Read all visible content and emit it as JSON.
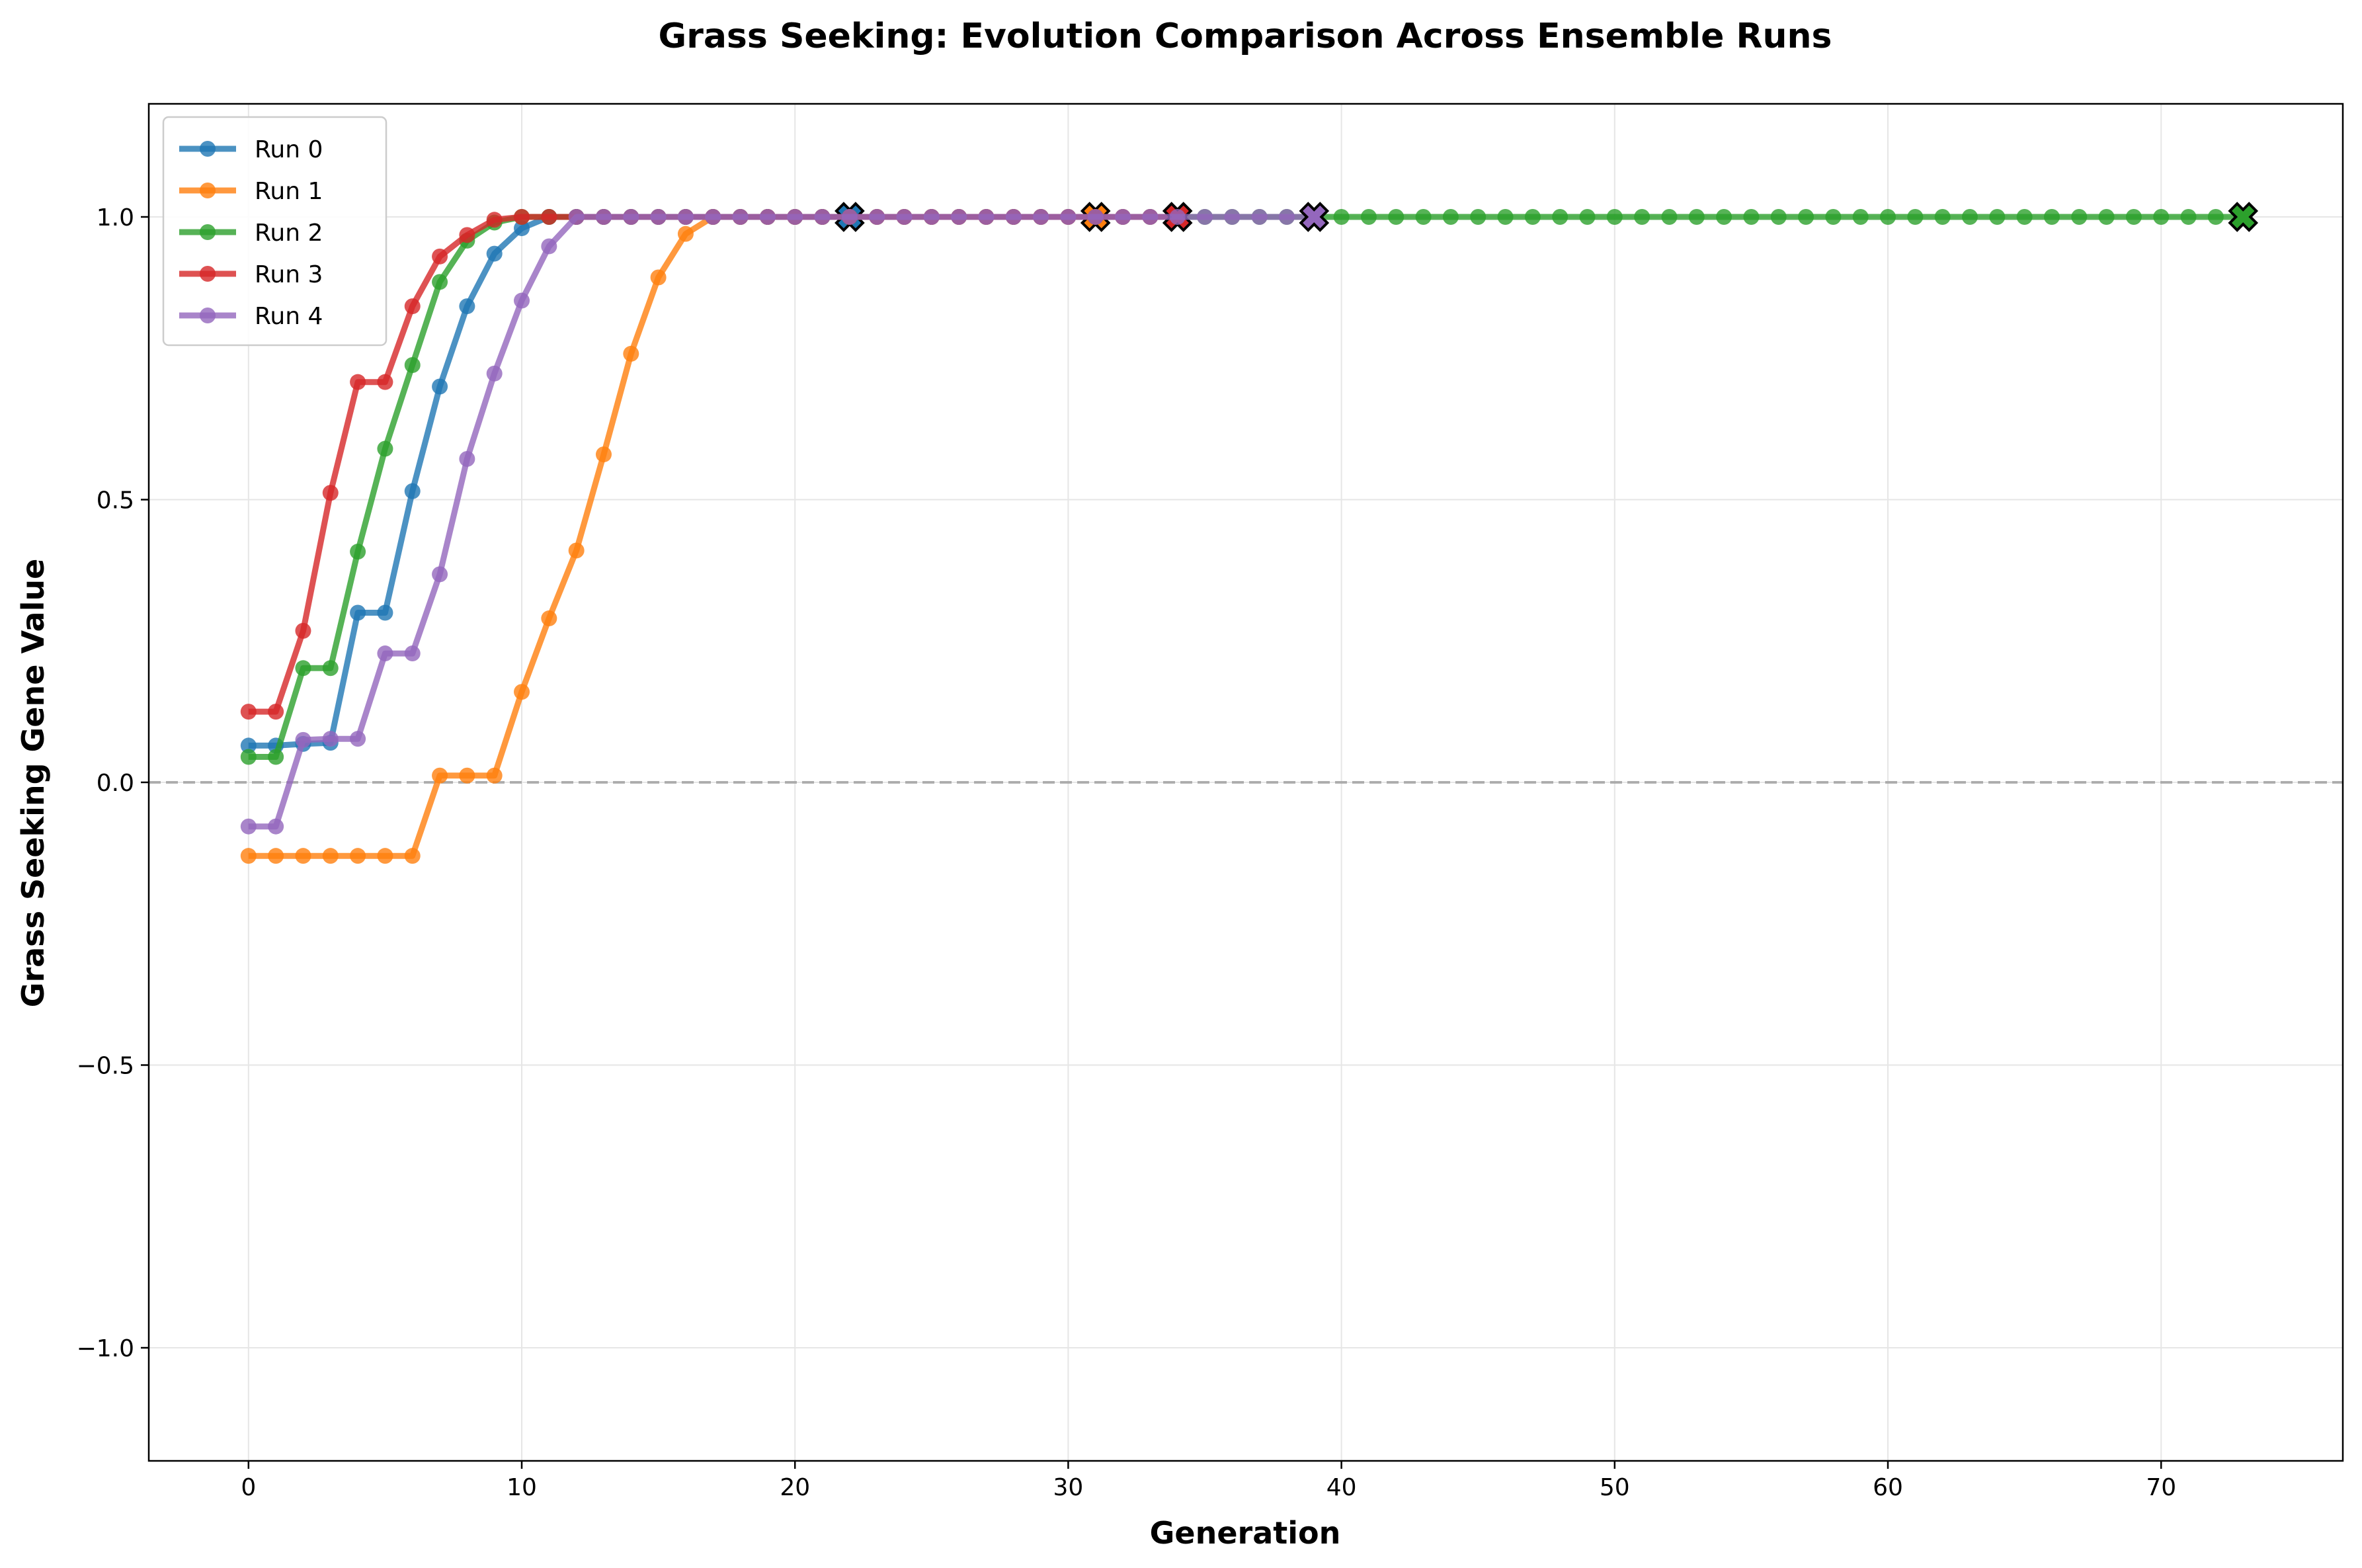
{
  "chart_data": {
    "type": "line",
    "title": "Grass Seeking: Evolution Comparison Across Ensemble Runs",
    "xlabel": "Generation",
    "ylabel": "Grass Seeking Gene Value",
    "xlim": [
      -3.65,
      76.65
    ],
    "ylim": [
      -1.2,
      1.2
    ],
    "xticks": [
      0,
      10,
      20,
      30,
      40,
      50,
      60,
      70
    ],
    "yticks": [
      -1.0,
      -0.5,
      0.0,
      0.5,
      1.0
    ],
    "ytick_labels": [
      "−1.0",
      "−0.5",
      "0.0",
      "0.5",
      "1.0"
    ],
    "grid": true,
    "reference_line": {
      "y": 0.0,
      "style": "dashed",
      "color": "#999999"
    },
    "legend_position": "upper-left",
    "final_marker": "x",
    "series": [
      {
        "name": "Run 0",
        "color": "#1f77b4",
        "x": [
          0,
          1,
          2,
          3,
          4,
          5,
          6,
          7,
          8,
          9,
          10,
          11,
          12,
          13,
          14,
          15,
          16,
          17,
          18,
          19,
          20,
          21,
          22
        ],
        "y": [
          0.065,
          0.065,
          0.068,
          0.07,
          0.3,
          0.3,
          0.515,
          0.7,
          0.842,
          0.935,
          0.98,
          1.0,
          1.0,
          1.0,
          1.0,
          1.0,
          1.0,
          1.0,
          1.0,
          1.0,
          1.0,
          1.0,
          1.0
        ]
      },
      {
        "name": "Run 1",
        "color": "#ff7f0e",
        "x": [
          0,
          1,
          2,
          3,
          4,
          5,
          6,
          7,
          8,
          9,
          10,
          11,
          12,
          13,
          14,
          15,
          16,
          17,
          18,
          19,
          20,
          21,
          22,
          23,
          24,
          25,
          26,
          27,
          28,
          29,
          30,
          31
        ],
        "y": [
          -0.13,
          -0.13,
          -0.13,
          -0.13,
          -0.13,
          -0.13,
          -0.13,
          0.012,
          0.012,
          0.012,
          0.16,
          0.29,
          0.41,
          0.58,
          0.758,
          0.893,
          0.97,
          1.0,
          1.0,
          1.0,
          1.0,
          1.0,
          1.0,
          1.0,
          1.0,
          1.0,
          1.0,
          1.0,
          1.0,
          1.0,
          1.0,
          1.0
        ]
      },
      {
        "name": "Run 2",
        "color": "#2ca02c",
        "x": [
          0,
          1,
          2,
          3,
          4,
          5,
          6,
          7,
          8,
          9,
          10,
          11,
          12,
          13,
          14,
          15,
          16,
          17,
          18,
          19,
          20,
          21,
          22,
          23,
          24,
          25,
          26,
          27,
          28,
          29,
          30,
          31,
          32,
          33,
          34,
          35,
          36,
          37,
          38,
          39,
          40,
          41,
          42,
          43,
          44,
          45,
          46,
          47,
          48,
          49,
          50,
          51,
          52,
          53,
          54,
          55,
          56,
          57,
          58,
          59,
          60,
          61,
          62,
          63,
          64,
          65,
          66,
          67,
          68,
          69,
          70,
          71,
          72,
          73
        ],
        "y": [
          0.045,
          0.045,
          0.202,
          0.202,
          0.408,
          0.59,
          0.738,
          0.885,
          0.958,
          0.99,
          1.0,
          1.0,
          1.0,
          1.0,
          1.0,
          1.0,
          1.0,
          1.0,
          1.0,
          1.0,
          1.0,
          1.0,
          1.0,
          1.0,
          1.0,
          1.0,
          1.0,
          1.0,
          1.0,
          1.0,
          1.0,
          1.0,
          1.0,
          1.0,
          1.0,
          1.0,
          1.0,
          1.0,
          1.0,
          1.0,
          1.0,
          1.0,
          1.0,
          1.0,
          1.0,
          1.0,
          1.0,
          1.0,
          1.0,
          1.0,
          1.0,
          1.0,
          1.0,
          1.0,
          1.0,
          1.0,
          1.0,
          1.0,
          1.0,
          1.0,
          1.0,
          1.0,
          1.0,
          1.0,
          1.0,
          1.0,
          1.0,
          1.0,
          1.0,
          1.0,
          1.0,
          1.0,
          1.0,
          1.0
        ]
      },
      {
        "name": "Run 3",
        "color": "#d62728",
        "x": [
          0,
          1,
          2,
          3,
          4,
          5,
          6,
          7,
          8,
          9,
          10,
          11,
          12,
          13,
          14,
          15,
          16,
          17,
          18,
          19,
          20,
          21,
          22,
          23,
          24,
          25,
          26,
          27,
          28,
          29,
          30,
          31,
          32,
          33,
          34
        ],
        "y": [
          0.125,
          0.125,
          0.268,
          0.512,
          0.708,
          0.708,
          0.842,
          0.93,
          0.968,
          0.995,
          1.0,
          1.0,
          1.0,
          1.0,
          1.0,
          1.0,
          1.0,
          1.0,
          1.0,
          1.0,
          1.0,
          1.0,
          1.0,
          1.0,
          1.0,
          1.0,
          1.0,
          1.0,
          1.0,
          1.0,
          1.0,
          1.0,
          1.0,
          1.0,
          1.0
        ]
      },
      {
        "name": "Run 4",
        "color": "#9467bd",
        "x": [
          0,
          1,
          2,
          3,
          4,
          5,
          6,
          7,
          8,
          9,
          10,
          11,
          12,
          13,
          14,
          15,
          16,
          17,
          18,
          19,
          20,
          21,
          22,
          23,
          24,
          25,
          26,
          27,
          28,
          29,
          30,
          31,
          32,
          33,
          34,
          35,
          36,
          37,
          38,
          39
        ],
        "y": [
          -0.078,
          -0.078,
          0.075,
          0.077,
          0.077,
          0.228,
          0.228,
          0.368,
          0.572,
          0.723,
          0.852,
          0.948,
          1.0,
          1.0,
          1.0,
          1.0,
          1.0,
          1.0,
          1.0,
          1.0,
          1.0,
          1.0,
          1.0,
          1.0,
          1.0,
          1.0,
          1.0,
          1.0,
          1.0,
          1.0,
          1.0,
          1.0,
          1.0,
          1.0,
          1.0,
          1.0,
          1.0,
          1.0,
          1.0,
          1.0
        ]
      }
    ]
  }
}
